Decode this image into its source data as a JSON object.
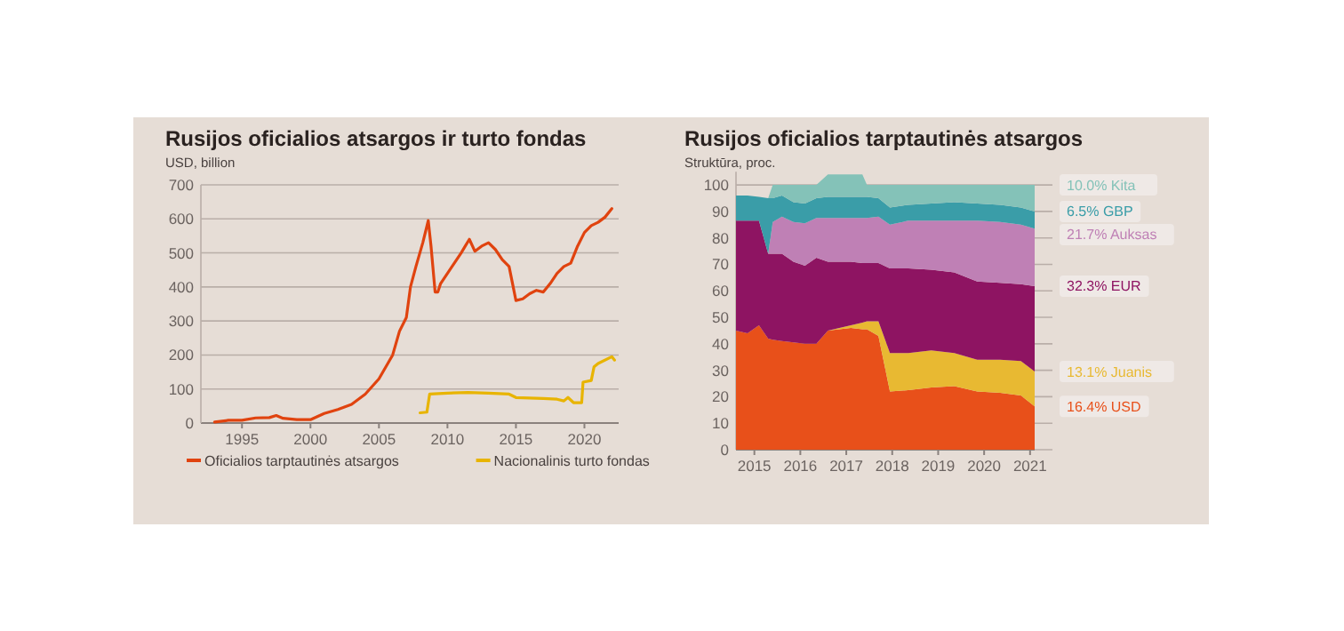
{
  "chart_data": [
    {
      "type": "line",
      "title": "Rusijos oficialios atsargos ir turto fondas",
      "ylabel": "USD, billion",
      "xlim": [
        1992,
        2022.5
      ],
      "xticks": [
        1995,
        2000,
        2005,
        2010,
        2015,
        2020
      ],
      "ylim": [
        0,
        700
      ],
      "yticks": [
        0,
        100,
        200,
        300,
        400,
        500,
        600,
        700
      ],
      "grid": "y",
      "legend": "bottom",
      "series": [
        {
          "name": "Oficialios tarptautinės atsargos",
          "color": "#e0430f",
          "x": [
            1993,
            1994,
            1995,
            1996,
            1997,
            1997.5,
            1998,
            1999,
            2000,
            2001,
            2002,
            2003,
            2004,
            2005,
            2006,
            2006.5,
            2007,
            2007.3,
            2007.7,
            2008.2,
            2008.6,
            2008.8,
            2009.1,
            2009.3,
            2009.5,
            2010,
            2010.5,
            2011,
            2011.3,
            2011.6,
            2012,
            2012.5,
            2013,
            2013.5,
            2014,
            2014.5,
            2015,
            2015.5,
            2016,
            2016.5,
            2017,
            2017.5,
            2018,
            2018.5,
            2019,
            2019.5,
            2020,
            2020.5,
            2021,
            2021.5,
            2022
          ],
          "values": [
            3,
            8,
            8,
            15,
            16,
            22,
            14,
            10,
            10,
            28,
            40,
            55,
            85,
            130,
            200,
            270,
            310,
            400,
            460,
            530,
            595,
            520,
            385,
            385,
            410,
            440,
            470,
            500,
            520,
            540,
            505,
            520,
            530,
            510,
            480,
            460,
            360,
            365,
            380,
            390,
            385,
            410,
            440,
            460,
            470,
            520,
            560,
            580,
            590,
            605,
            630
          ]
        },
        {
          "name": "Nacionalinis turto fondas",
          "color": "#e8b400",
          "x": [
            2008,
            2008.5,
            2008.7,
            2010,
            2011.5,
            2013,
            2014.5,
            2015,
            2017,
            2018,
            2018.5,
            2018.8,
            2019.2,
            2019.8,
            2019.9,
            2020.5,
            2020.7,
            2021,
            2022,
            2022.2
          ],
          "values": [
            30,
            32,
            85,
            88,
            90,
            88,
            85,
            75,
            72,
            70,
            65,
            75,
            60,
            60,
            120,
            125,
            165,
            175,
            195,
            185
          ]
        }
      ]
    },
    {
      "type": "area",
      "stacked": true,
      "title": "Rusijos oficialios tarptautinės atsargos",
      "ylabel": "Struktūra, proc.",
      "xlim": [
        2014.6,
        2021.1
      ],
      "xticks": [
        2015,
        2016,
        2017,
        2018,
        2019,
        2020,
        2021
      ],
      "ylim": [
        0,
        105
      ],
      "yticks": [
        0,
        10,
        20,
        30,
        40,
        50,
        60,
        70,
        80,
        90,
        100
      ],
      "grid": "y",
      "x": [
        2014.6,
        2014.85,
        2015.1,
        2015.3,
        2015.4,
        2015.6,
        2015.85,
        2016.1,
        2016.35,
        2016.6,
        2016.85,
        2017.1,
        2017.35,
        2017.45,
        2017.7,
        2017.95,
        2018.35,
        2018.85,
        2019.35,
        2019.85,
        2020.35,
        2020.8,
        2021.1
      ],
      "series": [
        {
          "name": "16.4% USD",
          "color": "#e8501a",
          "values": [
            45,
            44,
            47,
            42,
            41.5,
            41,
            40.5,
            40,
            40,
            45,
            45.5,
            46,
            45.5,
            45.5,
            43,
            22,
            22.5,
            23.5,
            24,
            22,
            21.5,
            20.5,
            16.4
          ]
        },
        {
          "name": "13.1% Juanis",
          "color": "#e8b932",
          "values": [
            0,
            0,
            0,
            0,
            0,
            0,
            0,
            0,
            0,
            0,
            0.5,
            1,
            2.5,
            3,
            5.5,
            14.5,
            14,
            14,
            12.5,
            12,
            12.5,
            13,
            13.1
          ]
        },
        {
          "name": "32.3% EUR",
          "color": "#8e1462",
          "values": [
            41.5,
            42.5,
            39.5,
            32,
            32.5,
            33,
            30.5,
            29.5,
            32.5,
            26,
            25,
            24,
            22.5,
            22,
            22,
            32,
            32,
            30.5,
            30.5,
            29.5,
            29,
            29,
            32.3
          ]
        },
        {
          "name": "21.7% Auksas",
          "color": "#bf80b5",
          "values": [
            0,
            0,
            0,
            0,
            12,
            14,
            15,
            16,
            15,
            16.5,
            16.5,
            16.5,
            17,
            17,
            17.5,
            16.5,
            18,
            18.5,
            19.5,
            23,
            23,
            22.5,
            21.7
          ]
        },
        {
          "name": "6.5% GBP",
          "color": "#3a9da8",
          "values": [
            9.5,
            9.5,
            9,
            21,
            9,
            8,
            7.5,
            7.5,
            7.5,
            8,
            8,
            8,
            8,
            8,
            7,
            6.5,
            6,
            6.5,
            7,
            6.5,
            6.5,
            6.5,
            6.5
          ]
        },
        {
          "name": "10.0% Kita",
          "color": "#84c2b8",
          "values": [
            0,
            0,
            0,
            0,
            5,
            4,
            6.5,
            7,
            5,
            8.5,
            8.5,
            8.5,
            8.5,
            4.5,
            5,
            8.5,
            7.5,
            7,
            6.5,
            7,
            7.5,
            8.5,
            10.0
          ]
        }
      ]
    }
  ]
}
